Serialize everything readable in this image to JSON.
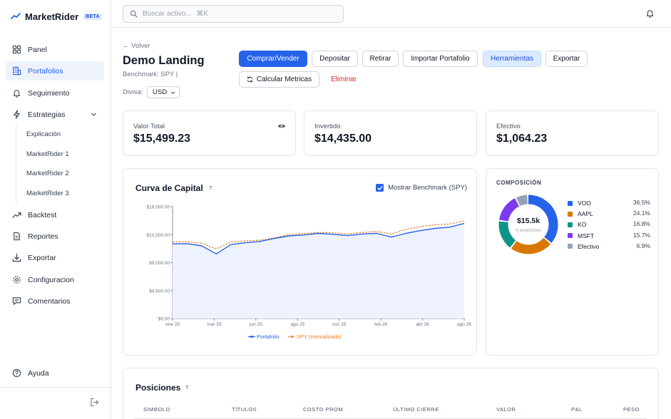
{
  "brand": {
    "name": "MarketRider",
    "badge": "BETA"
  },
  "sidebar": {
    "items": [
      {
        "label": "Panel"
      },
      {
        "label": "Portafolios"
      },
      {
        "label": "Seguimiento"
      },
      {
        "label": "Estrategias"
      }
    ],
    "strategy_items": [
      {
        "label": "Explicación"
      },
      {
        "label": "MarketRider 1"
      },
      {
        "label": "MarketRider 2"
      },
      {
        "label": "MarketRider 3"
      }
    ],
    "items_after": [
      {
        "label": "Backtest"
      },
      {
        "label": "Reportes"
      },
      {
        "label": "Exportar"
      },
      {
        "label": "Configuracion"
      },
      {
        "label": "Comentarios"
      }
    ],
    "help": "Ayuda"
  },
  "search": {
    "placeholder": "Buscar activo...",
    "shortcut": "⌘K"
  },
  "header": {
    "back": "← Volver",
    "title": "Demo Landing",
    "benchmark": "Benchmark: SPY  |",
    "currency_label": "Divisa:",
    "currency_value": "USD"
  },
  "actions": {
    "buy_sell": "Comprar/Vender",
    "deposit": "Depositar",
    "withdraw": "Retirar",
    "import": "Importar Portafolio",
    "tools": "Herramientas",
    "export": "Exportar",
    "metrics": "Calcular Metricas",
    "delete": "Eliminar"
  },
  "stats": {
    "total": {
      "label": "Valor Total",
      "value": "$15,499.23"
    },
    "invested": {
      "label": "Invertido",
      "value": "$14,435.00"
    },
    "cash": {
      "label": "Efectivo",
      "value": "$1,064.23"
    }
  },
  "capital_curve": {
    "title": "Curva de Capital",
    "help": "?",
    "benchmark_toggle": "Mostrar Benchmark (SPY)",
    "benchmark_checked": true,
    "colors": {
      "portfolio": "#2563eb",
      "benchmark": "#ea7a1c",
      "fill": "#eef2fc"
    }
  },
  "chart_data": {
    "type": "line",
    "title": "Curva de Capital",
    "ylim": [
      0,
      18000
    ],
    "y_ticks": [
      "$0.00",
      "$4,500.00",
      "$9,000.00",
      "$13,500.00",
      "$18,000.00"
    ],
    "x_ticks": [
      "ene 25",
      "mar 25",
      "jun 25",
      "ago 25",
      "nov 25",
      "feb 26",
      "abr 26",
      "ago 26"
    ],
    "x": [
      "ene 25",
      "feb 25",
      "mar 25",
      "mar 25",
      "abr 25",
      "may 25",
      "jun 25",
      "jul 25",
      "ago 25",
      "sep 25",
      "oct 25",
      "nov 25",
      "dic 25",
      "ene 26",
      "feb 26",
      "mar 26",
      "abr 26",
      "may 26",
      "jun 26",
      "jul 26",
      "ago 26"
    ],
    "series": [
      {
        "name": "Portafolio",
        "values": [
          12000,
          12050,
          11700,
          10400,
          11900,
          12200,
          12400,
          12900,
          13300,
          13450,
          13700,
          13550,
          13350,
          13600,
          13700,
          13100,
          13700,
          14150,
          14500,
          14700,
          15300
        ]
      },
      {
        "name": "SPY (normalizado)",
        "values": [
          12300,
          12350,
          12100,
          11200,
          12300,
          12500,
          12600,
          13000,
          13500,
          13650,
          13850,
          13800,
          13600,
          13850,
          14000,
          13600,
          14350,
          14800,
          15100,
          15200,
          15700
        ]
      }
    ],
    "legend": "bottom-center",
    "grid": false
  },
  "composition": {
    "title": "COMPOSICIÓN",
    "center_value": "$15.5k",
    "center_sub": "4 posiciones",
    "slices": [
      {
        "name": "VOO",
        "pct": "36.5%",
        "value": 36.5,
        "color": "#2563eb"
      },
      {
        "name": "AAPL",
        "pct": "24.1%",
        "value": 24.1,
        "color": "#d97706"
      },
      {
        "name": "KO",
        "pct": "16.8%",
        "value": 16.8,
        "color": "#0d9488"
      },
      {
        "name": "MSFT",
        "pct": "15.7%",
        "value": 15.7,
        "color": "#7c3aed"
      },
      {
        "name": "Efectivo",
        "pct": "6.9%",
        "value": 6.9,
        "color": "#94a3b8"
      }
    ]
  },
  "positions": {
    "title": "Posiciones",
    "help": "?",
    "columns": [
      "SIMBOLO",
      "TÍTULOS",
      "COSTO PROM.",
      "ÚLTIMO CIERRE",
      "VALOR",
      "P&L",
      "PESO"
    ]
  }
}
